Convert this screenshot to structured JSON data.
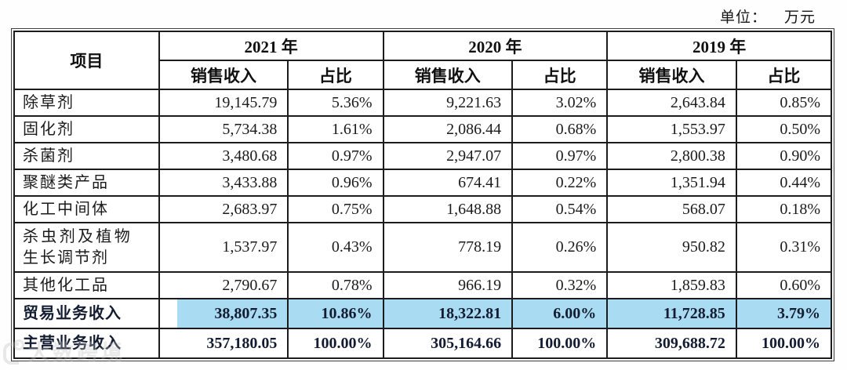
{
  "header": {
    "unit_label": "单位：",
    "unit_value": "万元"
  },
  "colors": {
    "highlight": "#a9dcf2",
    "border": "#1c1c1c",
    "text": "#1b1b1b"
  },
  "watermark": {
    "text": "大数跨境"
  },
  "table": {
    "corner_label": "项目",
    "years": [
      "2021 年",
      "2020 年",
      "2019 年"
    ],
    "sub_headers": [
      "销售收入",
      "占比"
    ],
    "rows": [
      {
        "label": "除草剂",
        "cells": [
          "19,145.79",
          "5.36%",
          "9,221.63",
          "3.02%",
          "2,643.84",
          "0.85%"
        ]
      },
      {
        "label": "固化剂",
        "cells": [
          "5,734.38",
          "1.61%",
          "2,086.44",
          "0.68%",
          "1,553.97",
          "0.50%"
        ]
      },
      {
        "label": "杀菌剂",
        "cells": [
          "3,480.68",
          "0.97%",
          "2,947.07",
          "0.97%",
          "2,800.38",
          "0.90%"
        ]
      },
      {
        "label": "聚醚类产品",
        "cells": [
          "3,433.88",
          "0.96%",
          "674.41",
          "0.22%",
          "1,351.94",
          "0.44%"
        ]
      },
      {
        "label": "化工中间体",
        "cells": [
          "2,683.97",
          "0.75%",
          "1,648.88",
          "0.54%",
          "568.07",
          "0.18%"
        ]
      },
      {
        "label": "杀虫剂及植物生长调节剂",
        "cells": [
          "1,537.97",
          "0.43%",
          "778.19",
          "0.26%",
          "950.82",
          "0.31%"
        ]
      },
      {
        "label": "其他化工品",
        "cells": [
          "2,790.67",
          "0.78%",
          "966.19",
          "0.32%",
          "1,859.83",
          "0.60%"
        ]
      },
      {
        "label": "贸易业务收入",
        "cells": [
          "38,807.35",
          "10.86%",
          "18,322.81",
          "6.00%",
          "11,728.85",
          "3.79%"
        ],
        "bold": true,
        "highlight": true
      },
      {
        "label": "主营业务收入",
        "cells": [
          "357,180.05",
          "100.00%",
          "305,164.66",
          "100.00%",
          "309,688.72",
          "100.00%"
        ],
        "bold": true
      }
    ]
  }
}
